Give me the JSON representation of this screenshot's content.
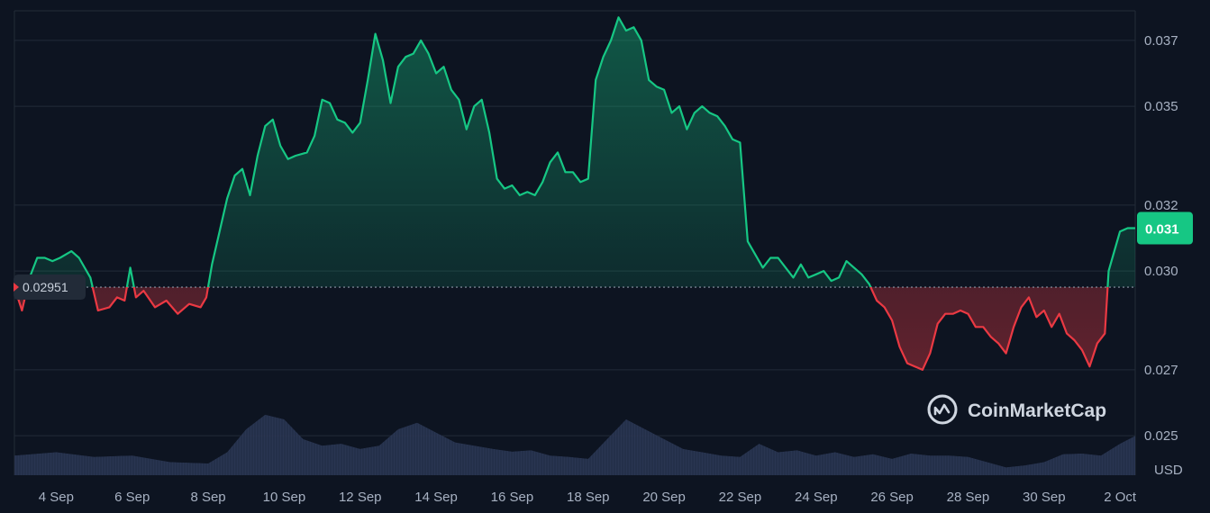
{
  "chart_data": {
    "type": "area",
    "currency_label": "USD",
    "reference_price": 0.02951,
    "reference_label": "0.02951",
    "current_price_label": "0.031",
    "ylim": [
      0.0238,
      0.0379
    ],
    "y_ticks": [
      {
        "value": 0.025,
        "label": "0.025"
      },
      {
        "value": 0.027,
        "label": "0.027"
      },
      {
        "value": 0.03,
        "label": "0.030"
      },
      {
        "value": 0.032,
        "label": "0.032"
      },
      {
        "value": 0.035,
        "label": "0.035"
      },
      {
        "value": 0.037,
        "label": "0.037"
      }
    ],
    "x_ticks": [
      {
        "day": 4,
        "label": "4 Sep"
      },
      {
        "day": 6,
        "label": "6 Sep"
      },
      {
        "day": 8,
        "label": "8 Sep"
      },
      {
        "day": 10,
        "label": "10 Sep"
      },
      {
        "day": 12,
        "label": "12 Sep"
      },
      {
        "day": 14,
        "label": "14 Sep"
      },
      {
        "day": 16,
        "label": "16 Sep"
      },
      {
        "day": 18,
        "label": "18 Sep"
      },
      {
        "day": 20,
        "label": "20 Sep"
      },
      {
        "day": 22,
        "label": "22 Sep"
      },
      {
        "day": 24,
        "label": "24 Sep"
      },
      {
        "day": 26,
        "label": "26 Sep"
      },
      {
        "day": 28,
        "label": "28 Sep"
      },
      {
        "day": 30,
        "label": "30 Sep"
      },
      {
        "day": 32,
        "label": "2 Oct"
      }
    ],
    "x_domain": [
      2.9,
      32.4
    ],
    "price_series": [
      [
        2.9,
        0.02951
      ],
      [
        3.1,
        0.0288
      ],
      [
        3.3,
        0.0298
      ],
      [
        3.5,
        0.0304
      ],
      [
        3.7,
        0.0304
      ],
      [
        3.9,
        0.0303
      ],
      [
        4.1,
        0.0304
      ],
      [
        4.4,
        0.0306
      ],
      [
        4.6,
        0.0304
      ],
      [
        4.9,
        0.0298
      ],
      [
        5.1,
        0.0288
      ],
      [
        5.4,
        0.0289
      ],
      [
        5.6,
        0.0292
      ],
      [
        5.8,
        0.0291
      ],
      [
        5.95,
        0.0301
      ],
      [
        6.1,
        0.0292
      ],
      [
        6.3,
        0.0294
      ],
      [
        6.6,
        0.0289
      ],
      [
        6.9,
        0.0291
      ],
      [
        7.2,
        0.0287
      ],
      [
        7.5,
        0.029
      ],
      [
        7.8,
        0.0289
      ],
      [
        7.95,
        0.0292
      ],
      [
        8.1,
        0.0302
      ],
      [
        8.3,
        0.0312
      ],
      [
        8.5,
        0.0322
      ],
      [
        8.7,
        0.0329
      ],
      [
        8.9,
        0.0331
      ],
      [
        9.1,
        0.0323
      ],
      [
        9.3,
        0.0335
      ],
      [
        9.5,
        0.0344
      ],
      [
        9.7,
        0.0346
      ],
      [
        9.9,
        0.0338
      ],
      [
        10.1,
        0.0334
      ],
      [
        10.3,
        0.0335
      ],
      [
        10.6,
        0.0336
      ],
      [
        10.8,
        0.0341
      ],
      [
        11.0,
        0.0352
      ],
      [
        11.2,
        0.0351
      ],
      [
        11.4,
        0.0346
      ],
      [
        11.6,
        0.0345
      ],
      [
        11.8,
        0.0342
      ],
      [
        12.0,
        0.0345
      ],
      [
        12.2,
        0.0358
      ],
      [
        12.4,
        0.0372
      ],
      [
        12.6,
        0.0364
      ],
      [
        12.8,
        0.0351
      ],
      [
        13.0,
        0.0362
      ],
      [
        13.2,
        0.0365
      ],
      [
        13.4,
        0.0366
      ],
      [
        13.6,
        0.037
      ],
      [
        13.8,
        0.0366
      ],
      [
        14.0,
        0.036
      ],
      [
        14.2,
        0.0362
      ],
      [
        14.4,
        0.0355
      ],
      [
        14.6,
        0.0352
      ],
      [
        14.8,
        0.0343
      ],
      [
        15.0,
        0.035
      ],
      [
        15.2,
        0.0352
      ],
      [
        15.4,
        0.0342
      ],
      [
        15.6,
        0.0328
      ],
      [
        15.8,
        0.0325
      ],
      [
        16.0,
        0.0326
      ],
      [
        16.2,
        0.0323
      ],
      [
        16.4,
        0.0324
      ],
      [
        16.6,
        0.0323
      ],
      [
        16.8,
        0.0327
      ],
      [
        17.0,
        0.0333
      ],
      [
        17.2,
        0.0336
      ],
      [
        17.4,
        0.033
      ],
      [
        17.6,
        0.033
      ],
      [
        17.8,
        0.0327
      ],
      [
        18.0,
        0.0328
      ],
      [
        18.2,
        0.0358
      ],
      [
        18.4,
        0.0365
      ],
      [
        18.6,
        0.037
      ],
      [
        18.8,
        0.0377
      ],
      [
        19.0,
        0.0373
      ],
      [
        19.2,
        0.0374
      ],
      [
        19.4,
        0.037
      ],
      [
        19.6,
        0.0358
      ],
      [
        19.8,
        0.0356
      ],
      [
        20.0,
        0.0355
      ],
      [
        20.2,
        0.0348
      ],
      [
        20.4,
        0.035
      ],
      [
        20.6,
        0.0343
      ],
      [
        20.8,
        0.0348
      ],
      [
        21.0,
        0.035
      ],
      [
        21.2,
        0.0348
      ],
      [
        21.4,
        0.0347
      ],
      [
        21.6,
        0.0344
      ],
      [
        21.8,
        0.034
      ],
      [
        22.0,
        0.0339
      ],
      [
        22.2,
        0.0309
      ],
      [
        22.4,
        0.0305
      ],
      [
        22.6,
        0.0301
      ],
      [
        22.8,
        0.0304
      ],
      [
        23.0,
        0.0304
      ],
      [
        23.2,
        0.0301
      ],
      [
        23.4,
        0.0298
      ],
      [
        23.6,
        0.0302
      ],
      [
        23.8,
        0.0298
      ],
      [
        24.0,
        0.0299
      ],
      [
        24.2,
        0.03
      ],
      [
        24.4,
        0.0297
      ],
      [
        24.6,
        0.0298
      ],
      [
        24.8,
        0.0303
      ],
      [
        25.0,
        0.0301
      ],
      [
        25.2,
        0.0299
      ],
      [
        25.4,
        0.0296
      ],
      [
        25.6,
        0.0291
      ],
      [
        25.8,
        0.0289
      ],
      [
        26.0,
        0.0285
      ],
      [
        26.2,
        0.0277
      ],
      [
        26.4,
        0.0272
      ],
      [
        26.6,
        0.0271
      ],
      [
        26.8,
        0.027
      ],
      [
        27.0,
        0.0275
      ],
      [
        27.2,
        0.0284
      ],
      [
        27.4,
        0.0287
      ],
      [
        27.6,
        0.0287
      ],
      [
        27.8,
        0.0288
      ],
      [
        28.0,
        0.0287
      ],
      [
        28.2,
        0.0283
      ],
      [
        28.4,
        0.0283
      ],
      [
        28.6,
        0.028
      ],
      [
        28.8,
        0.0278
      ],
      [
        29.0,
        0.0275
      ],
      [
        29.2,
        0.0283
      ],
      [
        29.4,
        0.0289
      ],
      [
        29.6,
        0.0292
      ],
      [
        29.8,
        0.0286
      ],
      [
        30.0,
        0.0288
      ],
      [
        30.2,
        0.0283
      ],
      [
        30.4,
        0.0287
      ],
      [
        30.6,
        0.0281
      ],
      [
        30.8,
        0.0279
      ],
      [
        31.0,
        0.0276
      ],
      [
        31.2,
        0.0271
      ],
      [
        31.4,
        0.0278
      ],
      [
        31.6,
        0.0281
      ],
      [
        31.7,
        0.03
      ],
      [
        31.85,
        0.0306
      ],
      [
        32.0,
        0.0312
      ],
      [
        32.2,
        0.0313
      ],
      [
        32.4,
        0.0313
      ]
    ],
    "volume_series": [
      [
        2.9,
        0.3
      ],
      [
        4.0,
        0.35
      ],
      [
        5.0,
        0.28
      ],
      [
        6.0,
        0.3
      ],
      [
        7.0,
        0.2
      ],
      [
        8.0,
        0.18
      ],
      [
        8.5,
        0.35
      ],
      [
        9.0,
        0.7
      ],
      [
        9.5,
        0.92
      ],
      [
        10.0,
        0.85
      ],
      [
        10.5,
        0.55
      ],
      [
        11.0,
        0.45
      ],
      [
        11.5,
        0.48
      ],
      [
        12.0,
        0.4
      ],
      [
        12.5,
        0.45
      ],
      [
        13.0,
        0.7
      ],
      [
        13.5,
        0.8
      ],
      [
        14.0,
        0.65
      ],
      [
        14.5,
        0.5
      ],
      [
        15.0,
        0.45
      ],
      [
        15.5,
        0.4
      ],
      [
        16.0,
        0.36
      ],
      [
        16.5,
        0.38
      ],
      [
        17.0,
        0.3
      ],
      [
        17.5,
        0.28
      ],
      [
        18.0,
        0.25
      ],
      [
        18.5,
        0.55
      ],
      [
        19.0,
        0.85
      ],
      [
        19.5,
        0.7
      ],
      [
        20.0,
        0.55
      ],
      [
        20.5,
        0.4
      ],
      [
        21.0,
        0.35
      ],
      [
        21.5,
        0.3
      ],
      [
        22.0,
        0.28
      ],
      [
        22.5,
        0.48
      ],
      [
        23.0,
        0.35
      ],
      [
        23.5,
        0.38
      ],
      [
        24.0,
        0.3
      ],
      [
        24.5,
        0.35
      ],
      [
        25.0,
        0.28
      ],
      [
        25.5,
        0.32
      ],
      [
        26.0,
        0.25
      ],
      [
        26.5,
        0.33
      ],
      [
        27.0,
        0.3
      ],
      [
        27.5,
        0.3
      ],
      [
        28.0,
        0.28
      ],
      [
        28.5,
        0.2
      ],
      [
        29.0,
        0.12
      ],
      [
        29.5,
        0.15
      ],
      [
        30.0,
        0.2
      ],
      [
        30.5,
        0.32
      ],
      [
        31.0,
        0.33
      ],
      [
        31.5,
        0.3
      ],
      [
        32.0,
        0.48
      ],
      [
        32.4,
        0.6
      ]
    ],
    "colors": {
      "background": "#0d1421",
      "grid": "#222b38",
      "up_line": "#16c784",
      "down_line": "#ea3943",
      "up_badge": "#16c784",
      "volume_fill": "#2c3857",
      "ref_badge_bg": "#222b38"
    }
  },
  "branding": {
    "logo_text": "CoinMarketCap"
  }
}
